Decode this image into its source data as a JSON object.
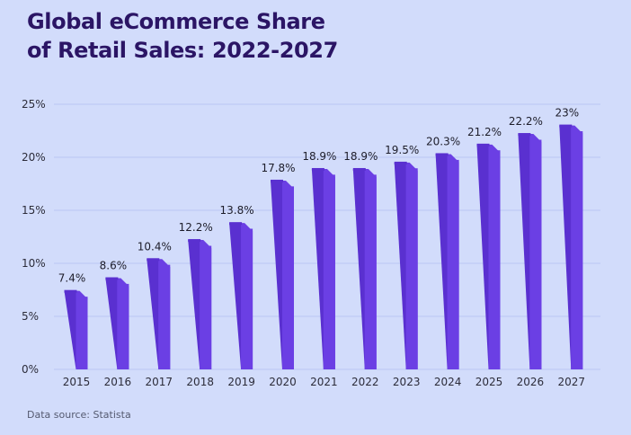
{
  "title_line1": "Global eCommerce Share",
  "title_line2": "of Retail Sales: 2022-2027",
  "source": "Data source: Statista",
  "colors": {
    "background": "#d2dcfb",
    "title": "#2b1565",
    "bar_front": "#6b3fe4",
    "bar_top": "#5a30d0",
    "gridline": "#b9c6f3"
  },
  "chart_data": {
    "type": "bar",
    "title": "Global eCommerce Share of Retail Sales: 2022-2027",
    "categories": [
      "2015",
      "2016",
      "2017",
      "2018",
      "2019",
      "2020",
      "2021",
      "2022",
      "2023",
      "2024",
      "2025",
      "2026",
      "2027"
    ],
    "values": [
      7.4,
      8.6,
      10.4,
      12.2,
      13.8,
      17.8,
      18.9,
      18.9,
      19.5,
      20.3,
      21.2,
      22.2,
      23
    ],
    "data_labels": [
      "7.4%",
      "8.6%",
      "10.4%",
      "12.2%",
      "13.8%",
      "17.8%",
      "18.9%",
      "18.9%",
      "19.5%",
      "20.3%",
      "21.2%",
      "22.2%",
      "23%"
    ],
    "yticks": [
      0,
      5,
      10,
      15,
      20,
      25
    ],
    "ytick_labels": [
      "0%",
      "5%",
      "10%",
      "15%",
      "20%",
      "25%"
    ],
    "ylim": [
      0,
      25
    ],
    "xlabel": "",
    "ylabel": "",
    "grid": true,
    "legend": false
  }
}
